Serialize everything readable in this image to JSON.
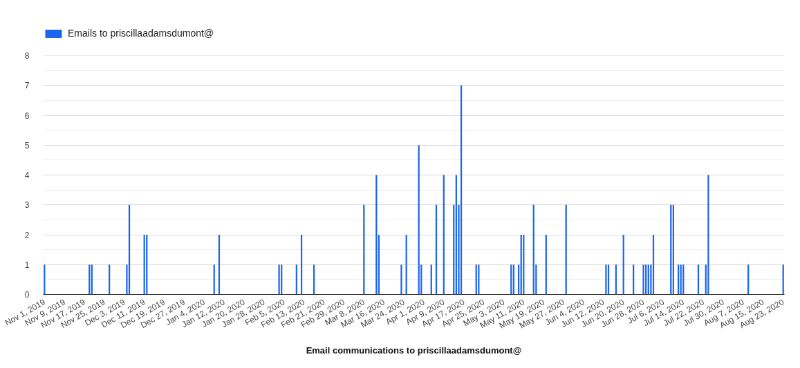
{
  "chart_data": {
    "type": "bar",
    "xlabel": "Email communications to priscillaadamsdumont@",
    "legend": "top left",
    "grid": "y",
    "x": [
      "2019-11-01",
      "2019-11-19",
      "2019-11-20",
      "2019-11-27",
      "2019-12-04",
      "2019-12-05",
      "2019-12-11",
      "2019-12-12",
      "2020-01-08",
      "2020-01-10",
      "2020-02-03",
      "2020-02-04",
      "2020-02-10",
      "2020-02-12",
      "2020-02-17",
      "2020-03-08",
      "2020-03-13",
      "2020-03-14",
      "2020-03-23",
      "2020-03-25",
      "2020-03-30",
      "2020-03-31",
      "2020-04-04",
      "2020-04-06",
      "2020-04-09",
      "2020-04-13",
      "2020-04-14",
      "2020-04-15",
      "2020-04-16",
      "2020-04-22",
      "2020-04-23",
      "2020-05-06",
      "2020-05-07",
      "2020-05-09",
      "2020-05-10",
      "2020-05-11",
      "2020-05-15",
      "2020-05-16",
      "2020-05-20",
      "2020-05-28",
      "2020-06-13",
      "2020-06-14",
      "2020-06-17",
      "2020-06-20",
      "2020-06-24",
      "2020-06-28",
      "2020-06-29",
      "2020-06-30",
      "2020-07-01",
      "2020-07-02",
      "2020-07-09",
      "2020-07-10",
      "2020-07-12",
      "2020-07-13",
      "2020-07-14",
      "2020-07-20",
      "2020-07-23",
      "2020-07-24",
      "2020-08-09",
      "2020-08-23"
    ],
    "series": [
      {
        "name": "Emails to priscillaadamsdumont@",
        "color": "#1a66f0",
        "values": [
          1,
          1,
          1,
          1,
          1,
          3,
          2,
          2,
          1,
          2,
          1,
          1,
          1,
          2,
          1,
          3,
          4,
          2,
          1,
          2,
          5,
          1,
          1,
          3,
          4,
          3,
          4,
          3,
          7,
          1,
          1,
          1,
          1,
          1,
          2,
          2,
          3,
          1,
          2,
          3,
          1,
          1,
          1,
          2,
          1,
          1,
          1,
          1,
          1,
          2,
          3,
          3,
          1,
          1,
          1,
          1,
          1,
          4,
          1,
          1
        ]
      }
    ],
    "xlim": [
      "2019-10-31T12:00",
      "2020-08-23T12:00"
    ],
    "xticks": [
      {
        "value": "2019-11-01",
        "label": "Nov 1, 2019"
      },
      {
        "value": "2019-11-09",
        "label": "Nov 9, 2019"
      },
      {
        "value": "2019-11-17",
        "label": "Nov 17, 2019"
      },
      {
        "value": "2019-11-25",
        "label": "Nov 25, 2019"
      },
      {
        "value": "2019-12-03",
        "label": "Dec 3, 2019"
      },
      {
        "value": "2019-12-11",
        "label": "Dec 11, 2019"
      },
      {
        "value": "2019-12-19",
        "label": "Dec 19, 2019"
      },
      {
        "value": "2019-12-27",
        "label": "Dec 27, 2019"
      },
      {
        "value": "2020-01-04",
        "label": "Jan 4, 2020"
      },
      {
        "value": "2020-01-12",
        "label": "Jan 12, 2020"
      },
      {
        "value": "2020-01-20",
        "label": "Jan 20, 2020"
      },
      {
        "value": "2020-01-28",
        "label": "Jan 28, 2020"
      },
      {
        "value": "2020-02-05",
        "label": "Feb 5, 2020"
      },
      {
        "value": "2020-02-13",
        "label": "Feb 13, 2020"
      },
      {
        "value": "2020-02-21",
        "label": "Feb 21, 2020"
      },
      {
        "value": "2020-02-29",
        "label": "Feb 29, 2020"
      },
      {
        "value": "2020-03-08",
        "label": "Mar 8, 2020"
      },
      {
        "value": "2020-03-16",
        "label": "Mar 16, 2020"
      },
      {
        "value": "2020-03-24",
        "label": "Mar 24, 2020"
      },
      {
        "value": "2020-04-01",
        "label": "Apr 1, 2020"
      },
      {
        "value": "2020-04-09",
        "label": "Apr 9, 2020"
      },
      {
        "value": "2020-04-17",
        "label": "Apr 17, 2020"
      },
      {
        "value": "2020-04-25",
        "label": "Apr 25, 2020"
      },
      {
        "value": "2020-05-03",
        "label": "May 3, 2020"
      },
      {
        "value": "2020-05-11",
        "label": "May 11, 2020"
      },
      {
        "value": "2020-05-19",
        "label": "May 19, 2020"
      },
      {
        "value": "2020-05-27",
        "label": "May 27, 2020"
      },
      {
        "value": "2020-06-04",
        "label": "Jun 4, 2020"
      },
      {
        "value": "2020-06-12",
        "label": "Jun 12, 2020"
      },
      {
        "value": "2020-06-20",
        "label": "Jun 20, 2020"
      },
      {
        "value": "2020-06-28",
        "label": "Jun 28, 2020"
      },
      {
        "value": "2020-07-06",
        "label": "Jul 6, 2020"
      },
      {
        "value": "2020-07-14",
        "label": "Jul 14, 2020"
      },
      {
        "value": "2020-07-22",
        "label": "Jul 22, 2020"
      },
      {
        "value": "2020-07-30",
        "label": "Jul 30, 2020"
      },
      {
        "value": "2020-08-07",
        "label": "Aug 7, 2020"
      },
      {
        "value": "2020-08-15",
        "label": "Aug 15, 2020"
      },
      {
        "value": "2020-08-23",
        "label": "Aug 23, 2020"
      }
    ],
    "ylim": [
      0,
      8
    ],
    "yticks": [
      0,
      1,
      2,
      3,
      4,
      5,
      6,
      7,
      8
    ]
  }
}
